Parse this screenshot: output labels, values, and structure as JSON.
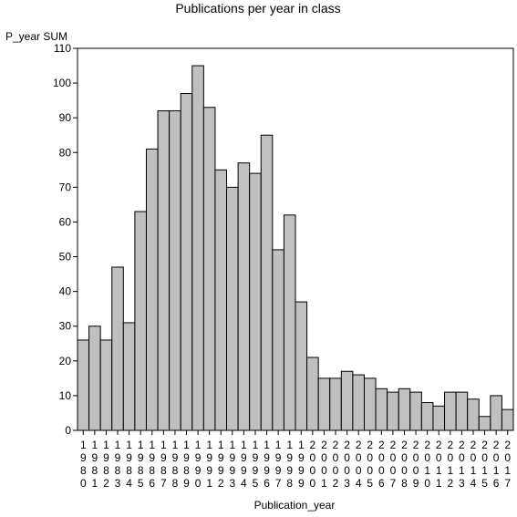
{
  "chart_data": {
    "type": "bar",
    "title": "Publications per year in class",
    "ylabel": "P_year SUM",
    "xlabel": "Publication_year",
    "ylim": [
      0,
      110
    ],
    "yticks": [
      0,
      10,
      20,
      30,
      40,
      50,
      60,
      70,
      80,
      90,
      100,
      110
    ],
    "grid": false,
    "bar_color": "#c0c0c0",
    "categories": [
      "1980",
      "1981",
      "1982",
      "1983",
      "1984",
      "1985",
      "1986",
      "1987",
      "1988",
      "1989",
      "1990",
      "1991",
      "1992",
      "1993",
      "1994",
      "1995",
      "1996",
      "1997",
      "1998",
      "1999",
      "2000",
      "2001",
      "2002",
      "2003",
      "2004",
      "2005",
      "2006",
      "2007",
      "2008",
      "2009",
      "2010",
      "2011",
      "2012",
      "2013",
      "2014",
      "2015",
      "2016",
      "2017"
    ],
    "values": [
      26,
      30,
      26,
      47,
      31,
      63,
      81,
      92,
      92,
      97,
      105,
      93,
      75,
      70,
      77,
      74,
      85,
      52,
      62,
      37,
      21,
      15,
      15,
      17,
      16,
      15,
      12,
      11,
      12,
      11,
      8,
      7,
      11,
      11,
      9,
      4,
      10,
      6
    ]
  }
}
